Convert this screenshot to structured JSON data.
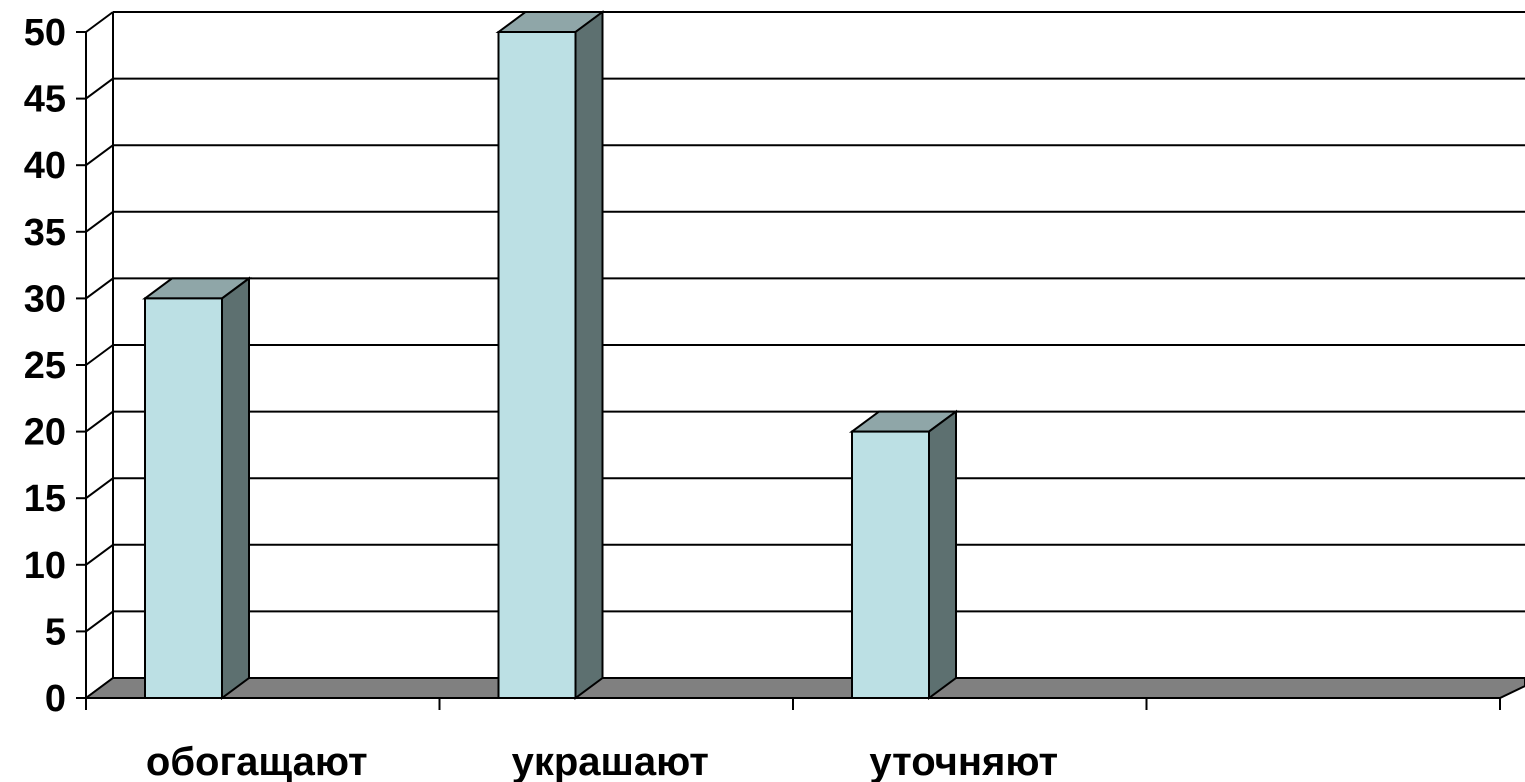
{
  "chart_data": {
    "type": "bar",
    "style": "3d-column",
    "categories": [
      "обогащают",
      "украшают",
      "уточняют",
      ""
    ],
    "values": [
      30,
      50,
      20,
      null
    ],
    "title": "",
    "xlabel": "",
    "ylabel": "",
    "ylim": [
      0,
      50
    ],
    "yticks": [
      "0",
      "5",
      "10",
      "15",
      "20",
      "25",
      "30",
      "35",
      "40",
      "45",
      "50"
    ],
    "grid": true,
    "legend": "none"
  },
  "colors": {
    "bar_front": "#bce0e4",
    "bar_top": "#8fa6a8",
    "bar_side": "#5d7070",
    "floor": "#808080",
    "gridline": "#000000",
    "background": "#ffffff"
  }
}
